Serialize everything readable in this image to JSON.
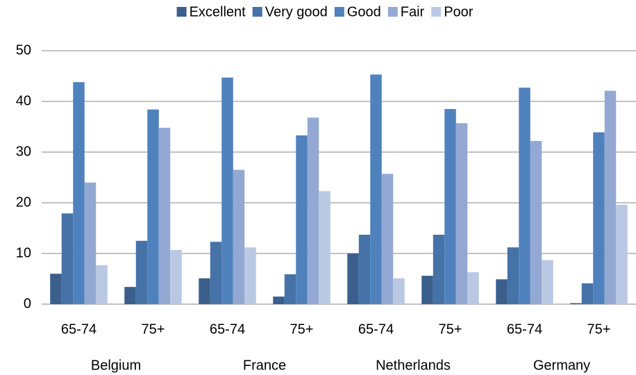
{
  "chart_data": {
    "type": "bar",
    "categories": [
      "65-74",
      "75+",
      "65-74",
      "75+",
      "65-74",
      "75+",
      "65-74",
      "75+"
    ],
    "groups": [
      "Belgium",
      "France",
      "Netherlands",
      "Germany"
    ],
    "series": [
      {
        "name": "Excellent",
        "color": "#3a5f8c",
        "values": [
          6.0,
          3.4,
          5.1,
          1.5,
          10.0,
          5.6,
          4.9,
          0.2
        ]
      },
      {
        "name": "Very good",
        "color": "#4572a7",
        "values": [
          17.9,
          12.5,
          12.3,
          5.9,
          13.7,
          13.7,
          11.2,
          4.1
        ]
      },
      {
        "name": "Good",
        "color": "#4f81bd",
        "values": [
          43.8,
          38.4,
          44.7,
          33.3,
          45.3,
          38.5,
          42.7,
          33.9
        ]
      },
      {
        "name": "Fair",
        "color": "#93a9d3",
        "values": [
          24.0,
          34.8,
          26.5,
          36.8,
          25.7,
          35.7,
          32.2,
          42.1
        ]
      },
      {
        "name": "Poor",
        "color": "#b9c9e4",
        "values": [
          7.7,
          10.7,
          11.2,
          22.3,
          5.1,
          6.3,
          8.7,
          19.6
        ]
      }
    ],
    "ylim": [
      0,
      50
    ],
    "yticks": [
      0,
      10,
      20,
      30,
      40,
      50
    ],
    "grid": true,
    "legend": "top"
  }
}
